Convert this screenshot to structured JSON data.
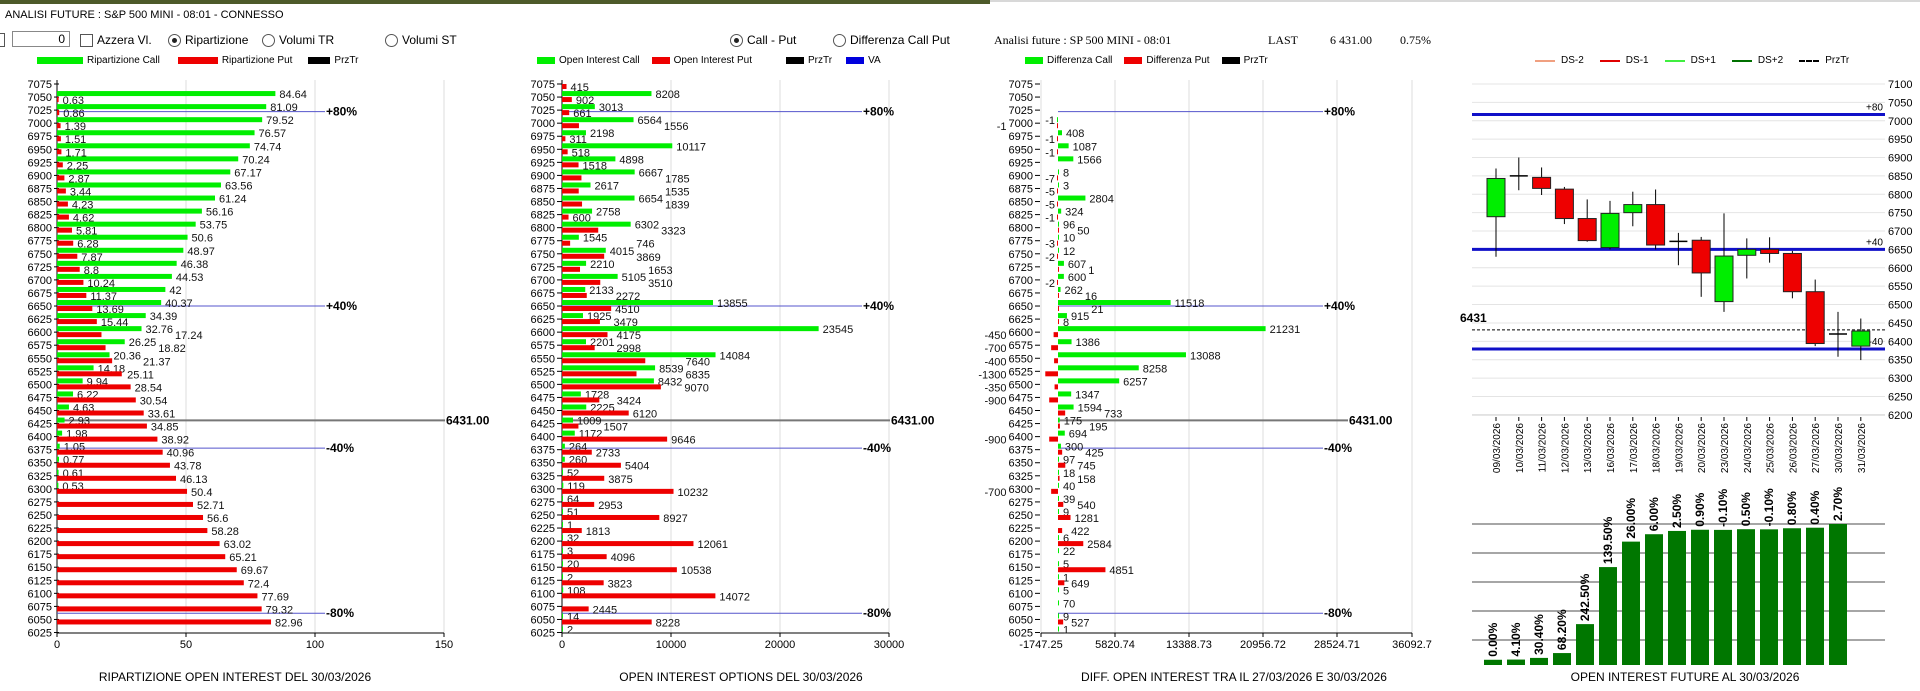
{
  "window": {
    "title": "ANALISI FUTURE : S&P 500 MINI - 08:01 - CONNESSO"
  },
  "controls": {
    "value_input": "0",
    "reset_checkbox": {
      "label": "Azzera Vl.",
      "checked": false
    },
    "mode_radios": [
      {
        "label": "Ripartizione",
        "selected": true
      },
      {
        "label": "Volumi TR",
        "selected": false
      },
      {
        "label": "Volumi ST",
        "selected": false
      }
    ],
    "view_radios": [
      {
        "label": "Call - Put",
        "selected": true
      },
      {
        "label": "Differenza Call Put",
        "selected": false
      }
    ]
  },
  "info": {
    "analysis": "Analisi future : SP 500 MINI - 08:01",
    "last_label": "LAST",
    "last_value": "6 431.00",
    "change": "0.75%"
  },
  "colors": {
    "call": "#00ee00",
    "put": "#ee0000",
    "przt": "#000000",
    "va": "#0000dd",
    "level_line": "#5555cc",
    "price_line": "#777777",
    "bar_future": "#007700"
  },
  "strikes": [
    7075,
    7050,
    7025,
    7000,
    6975,
    6950,
    6925,
    6900,
    6875,
    6850,
    6825,
    6800,
    6775,
    6750,
    6725,
    6700,
    6675,
    6650,
    6625,
    6600,
    6575,
    6550,
    6525,
    6500,
    6475,
    6450,
    6425,
    6400,
    6375,
    6350,
    6325,
    6300,
    6275,
    6250,
    6225,
    6200,
    6175,
    6150,
    6125,
    6100,
    6075,
    6050,
    6025
  ],
  "levels": [
    {
      "label": "+80%",
      "strike": 7022
    },
    {
      "label": "+40%",
      "strike": 6650
    },
    {
      "label": "6431.00",
      "strike": 6431,
      "price": true
    },
    {
      "label": "-40%",
      "strike": 6378
    },
    {
      "label": "-80%",
      "strike": 6062
    }
  ],
  "chart_data": [
    {
      "type": "bar",
      "orientation": "horizontal",
      "title": "RIPARTIZIONE OPEN INTEREST DEL 30/03/2026",
      "legend": [
        "Ripartizione Call",
        "Ripartizione Put",
        "PrzTr"
      ],
      "xticks": [
        "0",
        "50",
        "100",
        "150"
      ],
      "xlim": [
        0,
        150
      ],
      "series": [
        {
          "name": "Ripartizione Call",
          "values": [
            null,
            84.64,
            81.09,
            79.52,
            76.57,
            74.74,
            70.24,
            67.17,
            63.56,
            61.24,
            56.16,
            53.75,
            50.6,
            48.97,
            46.38,
            44.53,
            42,
            40.37,
            34.39,
            32.76,
            26.25,
            20.36,
            14.18,
            9.94,
            6.22,
            4.63,
            2.93,
            1.98,
            1.05,
            0.77,
            0.61,
            0.53,
            null,
            null,
            null,
            null,
            null,
            null,
            null,
            null,
            null,
            null,
            null
          ]
        },
        {
          "name": "Ripartizione Put",
          "values": [
            null,
            0.63,
            0.86,
            1.39,
            1.51,
            1.71,
            2.25,
            2.87,
            3.44,
            4.23,
            4.62,
            5.81,
            6.28,
            7.87,
            8.8,
            10.24,
            11.37,
            13.69,
            15.44,
            17.24,
            18.82,
            21.37,
            25.11,
            28.54,
            30.54,
            33.61,
            34.85,
            38.92,
            40.96,
            43.78,
            46.13,
            50.4,
            52.71,
            56.6,
            58.28,
            63.02,
            65.21,
            69.67,
            72.4,
            77.69,
            79.32,
            82.96,
            null
          ]
        }
      ]
    },
    {
      "type": "bar",
      "orientation": "horizontal",
      "title": "OPEN INTEREST OPTIONS DEL 30/03/2026",
      "legend": [
        "Open Interest Call",
        "Open Interest Put",
        "PrzTr",
        "VA"
      ],
      "xticks": [
        "0",
        "10000",
        "20000",
        "30000"
      ],
      "xlim": [
        0,
        30000
      ],
      "series": [
        {
          "name": "Open Interest Call",
          "values": [
            null,
            8208,
            3013,
            6564,
            2198,
            10117,
            4898,
            6667,
            2617,
            6654,
            2758,
            6302,
            1545,
            4015,
            2210,
            5105,
            2133,
            13855,
            1925,
            23545,
            2201,
            14084,
            8539,
            8432,
            1728,
            2225,
            1009,
            1172,
            264,
            260,
            52,
            119,
            64,
            51,
            1,
            32,
            3,
            20,
            2,
            108,
            null,
            14,
            2
          ]
        },
        {
          "name": "Open Interest Put",
          "values": [
            415,
            902,
            661,
            1556,
            311,
            518,
            1518,
            1785,
            1535,
            1839,
            600,
            3323,
            746,
            3869,
            1653,
            3510,
            2272,
            4510,
            3479,
            4175,
            2998,
            7640,
            6835,
            9070,
            3424,
            6120,
            1507,
            9646,
            2733,
            5404,
            3875,
            10232,
            2953,
            8927,
            1813,
            12061,
            4096,
            10538,
            3823,
            14072,
            2445,
            8228,
            null
          ]
        }
      ]
    },
    {
      "type": "bar",
      "orientation": "horizontal",
      "title": "DIFF. OPEN INTEREST TRA IL 27/03/2026 E 30/03/2026",
      "legend": [
        "Differenza Call",
        "Differenza Put",
        "PrzTr"
      ],
      "xticks": [
        "-1747.25",
        "5820.74",
        "13388.73",
        "20956.72",
        "28524.71",
        "36092.7"
      ],
      "xlim": [
        -1747.25,
        36092.7
      ],
      "series": [
        {
          "name": "Differenza Call",
          "values": [
            null,
            null,
            null,
            -1,
            408,
            1087,
            1566,
            8,
            3,
            2804,
            324,
            96,
            10,
            12,
            607,
            600,
            262,
            11518,
            915,
            21231,
            1386,
            13088,
            8258,
            6257,
            1347,
            1594,
            175,
            694,
            300,
            97,
            18,
            40,
            39,
            9,
            null,
            6,
            22,
            5,
            1,
            5,
            70,
            9,
            1
          ]
        },
        {
          "name": "Differenza Put",
          "values": [
            null,
            null,
            null,
            -1,
            -1,
            -1,
            null,
            -7,
            -5,
            -5,
            -1,
            50,
            -3,
            -2,
            1,
            -2,
            16,
            21,
            8,
            -450,
            -700,
            -400,
            -1300,
            -350,
            -900,
            733,
            195,
            -900,
            425,
            745,
            158,
            -700,
            540,
            1281,
            422,
            2584,
            null,
            4851,
            649,
            null,
            null,
            527,
            null
          ]
        }
      ]
    },
    {
      "type": "candlestick",
      "legend": [
        "DS-2",
        "DS-1",
        "DS+1",
        "DS+2",
        "PrzTr"
      ],
      "ylim": [
        6200,
        7100
      ],
      "yticks": [
        "7100",
        "7050",
        "7000",
        "6950",
        "6900",
        "6850",
        "6800",
        "6750",
        "6700",
        "6650",
        "6600",
        "6550",
        "6500",
        "6450",
        "6400",
        "6350",
        "6300",
        "6250",
        "6200"
      ],
      "price_label": "6431",
      "price": 6431,
      "bands": [
        {
          "label": "+80",
          "value": 7017
        },
        {
          "label": "+40",
          "value": 6650
        },
        {
          "label": "-40",
          "value": 6379
        }
      ],
      "candles": [
        {
          "date": "09/03/2026",
          "open": 6739,
          "high": 6870,
          "low": 6630,
          "close": 6843
        },
        {
          "date": "10/03/2026",
          "open": 6850,
          "high": 6900,
          "low": 6811,
          "close": 6850
        },
        {
          "date": "11/03/2026",
          "open": 6846,
          "high": 6873,
          "low": 6798,
          "close": 6816
        },
        {
          "date": "12/03/2026",
          "open": 6814,
          "high": 6820,
          "low": 6719,
          "close": 6734
        },
        {
          "date": "13/03/2026",
          "open": 6734,
          "high": 6786,
          "low": 6671,
          "close": 6674
        },
        {
          "date": "16/03/2026",
          "open": 6655,
          "high": 6782,
          "low": 6650,
          "close": 6748
        },
        {
          "date": "17/03/2026",
          "open": 6750,
          "high": 6807,
          "low": 6713,
          "close": 6772
        },
        {
          "date": "18/03/2026",
          "open": 6772,
          "high": 6813,
          "low": 6650,
          "close": 6662
        },
        {
          "date": "19/03/2026",
          "open": 6672,
          "high": 6695,
          "low": 6607,
          "close": 6672
        },
        {
          "date": "20/03/2026",
          "open": 6675,
          "high": 6684,
          "low": 6521,
          "close": 6586
        },
        {
          "date": "23/03/2026",
          "open": 6508,
          "high": 6748,
          "low": 6480,
          "close": 6632
        },
        {
          "date": "24/03/2026",
          "open": 6634,
          "high": 6680,
          "low": 6571,
          "close": 6650
        },
        {
          "date": "25/03/2026",
          "open": 6650,
          "high": 6683,
          "low": 6614,
          "close": 6639
        },
        {
          "date": "26/03/2026",
          "open": 6639,
          "high": 6646,
          "low": 6517,
          "close": 6535
        },
        {
          "date": "27/03/2026",
          "open": 6535,
          "high": 6568,
          "low": 6387,
          "close": 6394
        },
        {
          "date": "30/03/2026",
          "open": 6420,
          "high": 6480,
          "low": 6358,
          "close": 6420
        },
        {
          "date": "31/03/2026",
          "open": 6387,
          "high": 6462,
          "low": 6349,
          "close": 6428
        }
      ]
    },
    {
      "type": "bar",
      "title": "OPEN INTEREST FUTURE AL 30/03/2026",
      "pct_labels": [
        "0.00%",
        "4.10%",
        "30.40%",
        "68.20%",
        "242.50%",
        "139.50%",
        "26.00%",
        "6.00%",
        "2.50%",
        "0.90%",
        "-0.10%",
        "0.50%",
        "-0.10%",
        "0.80%",
        "0.40%",
        "2.70%"
      ],
      "pct_change": [
        0,
        4.1,
        30.4,
        68.2,
        242.5,
        139.5,
        26,
        6,
        2.5,
        0.9,
        -0.1,
        0.5,
        -0.1,
        0.8,
        0.4,
        2.7
      ]
    }
  ]
}
